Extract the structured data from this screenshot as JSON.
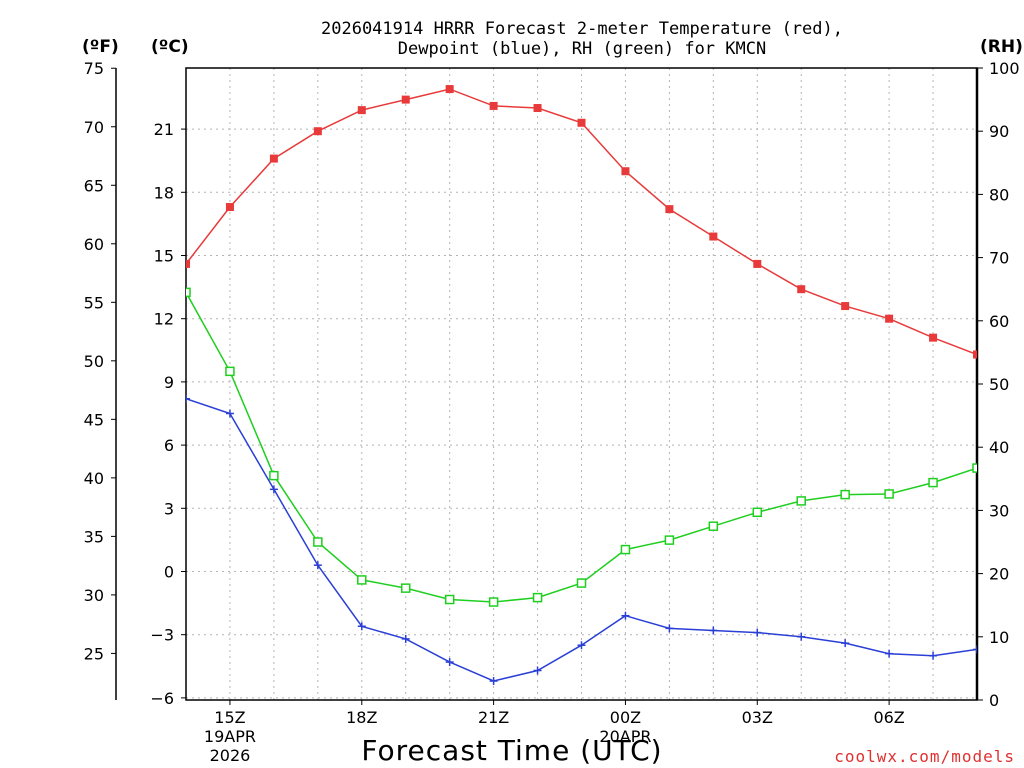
{
  "chart_data": {
    "type": "line",
    "title_line1": "2026041914 HRRR Forecast 2-meter Temperature (red),",
    "title_line2": "Dewpoint (blue), RH (green) for KMCN",
    "xlabel": "Forecast Time (UTC)",
    "credit": "coolwx.com/models",
    "unit_f": "(ºF)",
    "unit_c": "(ºC)",
    "unit_rh": "(RH)",
    "colors": {
      "temperature": "#e83a3a",
      "dewpoint": "#2a3fd6",
      "rh": "#1fcf1f",
      "credit": "#e03030"
    },
    "x_hours": [
      14,
      15,
      16,
      17,
      18,
      19,
      20,
      21,
      22,
      23,
      24,
      25,
      26,
      27,
      28,
      29,
      30,
      31,
      32
    ],
    "x_ticks": [
      {
        "hour": 15,
        "label": "15Z",
        "sub1": "19APR",
        "sub2": "2026"
      },
      {
        "hour": 18,
        "label": "18Z"
      },
      {
        "hour": 21,
        "label": "21Z"
      },
      {
        "hour": 24,
        "label": "00Z",
        "sub1": "20APR"
      },
      {
        "hour": 27,
        "label": "03Z"
      },
      {
        "hour": 30,
        "label": "06Z"
      }
    ],
    "ylim_c": [
      -6.1,
      23.9
    ],
    "ylim_rh": [
      0,
      100
    ],
    "yticks_c": [
      "-6",
      "-3",
      "0",
      "3",
      "6",
      "9",
      "12",
      "15",
      "18",
      "21"
    ],
    "yticks_f": [
      "25",
      "30",
      "35",
      "40",
      "45",
      "50",
      "55",
      "60",
      "65",
      "70",
      "75"
    ],
    "yticks_rh": [
      "0",
      "10",
      "20",
      "30",
      "40",
      "50",
      "60",
      "70",
      "80",
      "90",
      "100"
    ],
    "series": [
      {
        "name": "Temperature",
        "unit": "C",
        "marker": "filled-square",
        "values": [
          14.6,
          17.3,
          19.6,
          20.9,
          21.9,
          22.4,
          22.9,
          22.1,
          22.0,
          21.3,
          19.0,
          17.2,
          15.9,
          14.6,
          13.4,
          12.6,
          12.0,
          11.1,
          10.3
        ]
      },
      {
        "name": "Dewpoint",
        "unit": "C",
        "marker": "plus",
        "values": [
          8.2,
          7.5,
          3.9,
          0.3,
          -2.6,
          -3.2,
          -4.3,
          -5.2,
          -4.7,
          -3.5,
          -2.1,
          -2.7,
          -2.8,
          -2.9,
          -3.1,
          -3.4,
          -3.9,
          -4.0,
          -3.7
        ]
      },
      {
        "name": "RH",
        "unit": "%",
        "marker": "open-square",
        "values": [
          64.5,
          52.0,
          35.5,
          25.0,
          19.0,
          17.7,
          15.9,
          15.5,
          16.2,
          18.5,
          23.8,
          25.3,
          27.5,
          29.7,
          31.5,
          32.5,
          32.6,
          34.4,
          36.7
        ]
      }
    ]
  }
}
